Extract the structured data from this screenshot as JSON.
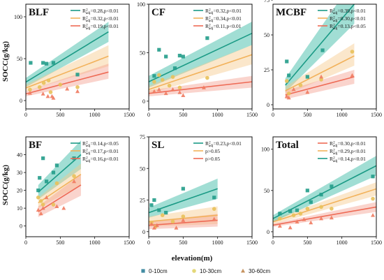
{
  "figure": {
    "ylabel": "SOCC(g/kg)",
    "xlabel": "elevation(m)",
    "bottom_legend": [
      {
        "label": "0-10cm",
        "color": "#2f7f99",
        "marker": "square"
      },
      {
        "label": "10-30cm",
        "color": "#e1d46a",
        "marker": "circle"
      },
      {
        "label": "30-60cm",
        "color": "#c0874e",
        "marker": "triangle"
      }
    ]
  },
  "chart_data": [
    {
      "type": "scatter",
      "title": "BLF",
      "xlim": [
        0,
        1500
      ],
      "ylim": [
        -10,
        115
      ],
      "xticks": [
        0,
        500,
        1000,
        1500
      ],
      "yticks": [
        0,
        50,
        100
      ],
      "series": [
        {
          "name": "R²adj=0.28,p<0.01",
          "color": "#229c8a",
          "line_color": "#1a9a85",
          "band_color": "#2fb5a0",
          "points": [
            [
              70,
              45
            ],
            [
              250,
              45
            ],
            [
              300,
              44
            ],
            [
              400,
              45
            ],
            [
              750,
              31
            ]
          ],
          "fit": [
            [
              0,
              22
            ],
            [
              1200,
              82
            ]
          ],
          "band": [
            [
              0,
              27,
              16
            ],
            [
              1200,
              94,
              70
            ]
          ]
        },
        {
          "name": "R²adj=0.32,p<0.01",
          "color": "#e8c15a",
          "line_color": "#f2b25b",
          "band_color": "#f7c98c",
          "points": [
            [
              60,
              13
            ],
            [
              200,
              16
            ],
            [
              260,
              21
            ],
            [
              330,
              24
            ],
            [
              360,
              10
            ],
            [
              500,
              19
            ],
            [
              750,
              16
            ]
          ],
          "fit": [
            [
              0,
              15
            ],
            [
              1200,
              53
            ]
          ],
          "band": [
            [
              0,
              19,
              11
            ],
            [
              1200,
              66,
              41
            ]
          ]
        },
        {
          "name": "R²adj=0.19,p<0.01",
          "color": "#f07a5f",
          "line_color": "#ee6a55",
          "band_color": "#f5a090",
          "points": [
            [
              60,
              9
            ],
            [
              250,
              8
            ],
            [
              320,
              5
            ],
            [
              380,
              5
            ],
            [
              400,
              3
            ],
            [
              600,
              14
            ],
            [
              750,
              11
            ]
          ],
          "fit": [
            [
              0,
              8
            ],
            [
              1200,
              34
            ]
          ],
          "band": [
            [
              0,
              11,
              5
            ],
            [
              1200,
              44,
              26
            ]
          ]
        }
      ]
    },
    {
      "type": "scatter",
      "title": "CF",
      "xlim": [
        0,
        1500
      ],
      "ylim": [
        -8,
        100
      ],
      "xticks": [
        0,
        500,
        1000,
        1500
      ],
      "yticks": [
        0,
        50,
        100
      ],
      "series": [
        {
          "name": "R²adj=0.32,p<0.01",
          "color": "#229c8a",
          "line_color": "#1a9a85",
          "band_color": "#2fb5a0",
          "points": [
            [
              80,
              26
            ],
            [
              150,
              53
            ],
            [
              250,
              46
            ],
            [
              380,
              34
            ],
            [
              450,
              47
            ],
            [
              500,
              46
            ],
            [
              850,
              65
            ]
          ],
          "fit": [
            [
              0,
              20
            ],
            [
              1500,
              70
            ]
          ],
          "band": [
            [
              0,
              26,
              14
            ],
            [
              1500,
              82,
              58
            ]
          ]
        },
        {
          "name": "R²adj=0.34,p<0.01",
          "color": "#e8c15a",
          "line_color": "#f2b25b",
          "band_color": "#f7c98c",
          "points": [
            [
              80,
              20
            ],
            [
              150,
              27
            ],
            [
              200,
              22
            ],
            [
              300,
              16
            ],
            [
              350,
              25
            ],
            [
              450,
              14
            ],
            [
              850,
              24
            ]
          ],
          "fit": [
            [
              0,
              12
            ],
            [
              1500,
              48
            ]
          ],
          "band": [
            [
              0,
              16,
              8
            ],
            [
              1500,
              58,
              38
            ]
          ]
        },
        {
          "name": "R²adj=0.11,p<0.01",
          "color": "#f07a5f",
          "line_color": "#ee6a55",
          "band_color": "#f5a090",
          "points": [
            [
              80,
              10
            ],
            [
              150,
              12
            ],
            [
              250,
              8
            ],
            [
              350,
              12
            ],
            [
              450,
              9
            ],
            [
              500,
              6
            ],
            [
              800,
              14
            ]
          ],
          "fit": [
            [
              0,
              8
            ],
            [
              1500,
              20
            ]
          ],
          "band": [
            [
              0,
              11,
              5
            ],
            [
              1500,
              26,
              14
            ]
          ]
        }
      ]
    },
    {
      "type": "scatter",
      "title": "MCBF",
      "xlim": [
        0,
        1500
      ],
      "ylim": [
        -3,
        72
      ],
      "xticks": [
        0,
        500,
        1000,
        1500
      ],
      "yticks": [
        0,
        25,
        50,
        75
      ],
      "series": [
        {
          "name": "R²adj=0.39,p<0.01",
          "color": "#229c8a",
          "line_color": "#1a9a85",
          "band_color": "#2fb5a0",
          "points": [
            [
              200,
              31
            ],
            [
              230,
              21
            ],
            [
              500,
              20
            ],
            [
              720,
              39
            ]
          ],
          "fit": [
            [
              180,
              14
            ],
            [
              1180,
              72
            ]
          ],
          "band": [
            [
              180,
              19,
              9
            ],
            [
              1180,
              90,
              58
            ]
          ]
        },
        {
          "name": "R²adj=0.30,p<0.01",
          "color": "#e8c15a",
          "line_color": "#f2b25b",
          "band_color": "#f7c98c",
          "points": [
            [
              200,
              17
            ],
            [
              230,
              8
            ],
            [
              400,
              14
            ],
            [
              700,
              18
            ],
            [
              1150,
              38
            ]
          ],
          "fit": [
            [
              180,
              10
            ],
            [
              1180,
              35
            ]
          ],
          "band": [
            [
              180,
              13,
              7
            ],
            [
              1180,
              44,
              28
            ]
          ]
        },
        {
          "name": "R²adj=0.13,p<0.05",
          "color": "#f07a5f",
          "line_color": "#ee6a55",
          "band_color": "#f5a090",
          "points": [
            [
              200,
              6
            ],
            [
              230,
              5
            ],
            [
              300,
              11
            ],
            [
              500,
              9
            ],
            [
              700,
              20
            ],
            [
              1150,
              21
            ]
          ],
          "fit": [
            [
              180,
              7
            ],
            [
              1180,
              20
            ]
          ],
          "band": [
            [
              180,
              10,
              4
            ],
            [
              1180,
              25,
              15
            ]
          ]
        }
      ]
    },
    {
      "type": "scatter",
      "title": "BF",
      "xlim": [
        0,
        1500
      ],
      "ylim": [
        -6,
        50
      ],
      "xticks": [
        0,
        500,
        1000,
        1500
      ],
      "yticks": [
        0,
        10,
        20,
        30,
        40
      ],
      "series": [
        {
          "name": "R²adj=0.14,p<0.05",
          "color": "#229c8a",
          "line_color": "#1a9a85",
          "band_color": "#2fb5a0",
          "points": [
            [
              180,
              20
            ],
            [
              200,
              27
            ],
            [
              250,
              38
            ],
            [
              300,
              25
            ],
            [
              400,
              30
            ],
            [
              450,
              34
            ],
            [
              700,
              38
            ]
          ],
          "fit": [
            [
              180,
              19
            ],
            [
              800,
              40
            ]
          ],
          "band": [
            [
              180,
              23,
              15
            ],
            [
              800,
              48,
              32
            ]
          ]
        },
        {
          "name": "R²adj=0.17,p<0.01",
          "color": "#e8c15a",
          "line_color": "#f2b25b",
          "band_color": "#f7c98c",
          "points": [
            [
              180,
              16
            ],
            [
              220,
              14
            ],
            [
              250,
              12
            ],
            [
              400,
              12
            ],
            [
              450,
              24
            ],
            [
              700,
              28
            ]
          ],
          "fit": [
            [
              180,
              13
            ],
            [
              800,
              29
            ]
          ],
          "band": [
            [
              180,
              16,
              10
            ],
            [
              800,
              35,
              23
            ]
          ]
        },
        {
          "name": "R²adj=0.16,p<0.01",
          "color": "#f07a5f",
          "line_color": "#ee6a55",
          "band_color": "#f5a090",
          "points": [
            [
              180,
              9
            ],
            [
              220,
              7
            ],
            [
              250,
              10
            ],
            [
              300,
              16
            ],
            [
              450,
              11
            ],
            [
              550,
              10
            ],
            [
              700,
              25
            ]
          ],
          "fit": [
            [
              180,
              8
            ],
            [
              800,
              23
            ]
          ],
          "band": [
            [
              180,
              11,
              5
            ],
            [
              800,
              29,
              17
            ]
          ]
        }
      ]
    },
    {
      "type": "scatter",
      "title": "SL",
      "xlim": [
        0,
        1500
      ],
      "ylim": [
        -4,
        75
      ],
      "xticks": [
        0,
        500,
        1000,
        1500
      ],
      "yticks": [
        0,
        25,
        50,
        75
      ],
      "series": [
        {
          "name": "R²adj=0.23,p<0.01",
          "color": "#229c8a",
          "line_color": "#1a9a85",
          "band_color": "#2fb5a0",
          "points": [
            [
              40,
              21
            ],
            [
              80,
              25
            ],
            [
              150,
              17
            ],
            [
              250,
              15
            ],
            [
              500,
              34
            ],
            [
              950,
              27
            ]
          ],
          "fit": [
            [
              0,
              15
            ],
            [
              1000,
              34
            ]
          ],
          "band": [
            [
              0,
              19,
              11
            ],
            [
              1000,
              42,
              26
            ]
          ]
        },
        {
          "name": "p>0.05",
          "color": "#e8c15a",
          "line_color": "#f2b25b",
          "band_color": "#f7c98c",
          "points": [
            [
              40,
              7
            ],
            [
              100,
              4
            ],
            [
              200,
              13
            ],
            [
              350,
              8
            ],
            [
              500,
              12
            ],
            [
              950,
              18
            ]
          ],
          "fit": [
            [
              0,
              8
            ],
            [
              1000,
              13
            ]
          ],
          "band": [
            [
              0,
              12,
              4
            ],
            [
              1000,
              20,
              6
            ]
          ]
        },
        {
          "name": "p>0.05",
          "color": "#f07a5f",
          "line_color": "#ee6a55",
          "band_color": "#f5a090",
          "points": [
            [
              40,
              6
            ],
            [
              80,
              3
            ],
            [
              120,
              5
            ],
            [
              400,
              3
            ],
            [
              500,
              9
            ],
            [
              950,
              10
            ]
          ],
          "fit": [
            [
              0,
              5
            ],
            [
              1000,
              9
            ]
          ],
          "band": [
            [
              0,
              8,
              2
            ],
            [
              1000,
              14,
              4
            ]
          ]
        }
      ]
    },
    {
      "type": "scatter",
      "title": "Total",
      "xlim": [
        0,
        1500
      ],
      "ylim": [
        -6,
        115
      ],
      "xticks": [
        0,
        500,
        1000,
        1500
      ],
      "yticks": [
        0,
        50,
        100
      ],
      "series": [
        {
          "name": "R²adj=0.30,p<0.01",
          "color": "#f07a5f",
          "line_color": "#ee6a55",
          "band_color": "#f5a090",
          "points": [
            [
              100,
              7
            ],
            [
              250,
              5
            ],
            [
              350,
              12
            ],
            [
              450,
              15
            ],
            [
              550,
              11
            ],
            [
              700,
              16
            ],
            [
              850,
              17
            ],
            [
              1450,
              20
            ]
          ],
          "fit": [
            [
              0,
              8
            ],
            [
              1500,
              30
            ]
          ],
          "band": [
            [
              0,
              10,
              6
            ],
            [
              1500,
              36,
              24
            ]
          ]
        },
        {
          "name": "R²adj=0.29,p<0.01",
          "color": "#e8c15a",
          "line_color": "#f2b25b",
          "band_color": "#f7c98c",
          "points": [
            [
              100,
              16
            ],
            [
              300,
              20
            ],
            [
              400,
              22
            ],
            [
              500,
              28
            ],
            [
              700,
              30
            ],
            [
              850,
              28
            ],
            [
              1450,
              40
            ]
          ],
          "fit": [
            [
              0,
              12
            ],
            [
              1500,
              52
            ]
          ],
          "band": [
            [
              0,
              15,
              9
            ],
            [
              1500,
              60,
              44
            ]
          ]
        },
        {
          "name": "R²adj=0.14,p<0.01",
          "color": "#229c8a",
          "line_color": "#1a9a85",
          "band_color": "#2fb5a0",
          "points": [
            [
              100,
              22
            ],
            [
              250,
              25
            ],
            [
              350,
              26
            ],
            [
              500,
              50
            ],
            [
              550,
              36
            ],
            [
              700,
              45
            ],
            [
              850,
              55
            ],
            [
              1450,
              67
            ]
          ],
          "fit": [
            [
              0,
              16
            ],
            [
              1500,
              80
            ]
          ],
          "band": [
            [
              0,
              20,
              12
            ],
            [
              1500,
              92,
              68
            ]
          ]
        }
      ]
    }
  ]
}
